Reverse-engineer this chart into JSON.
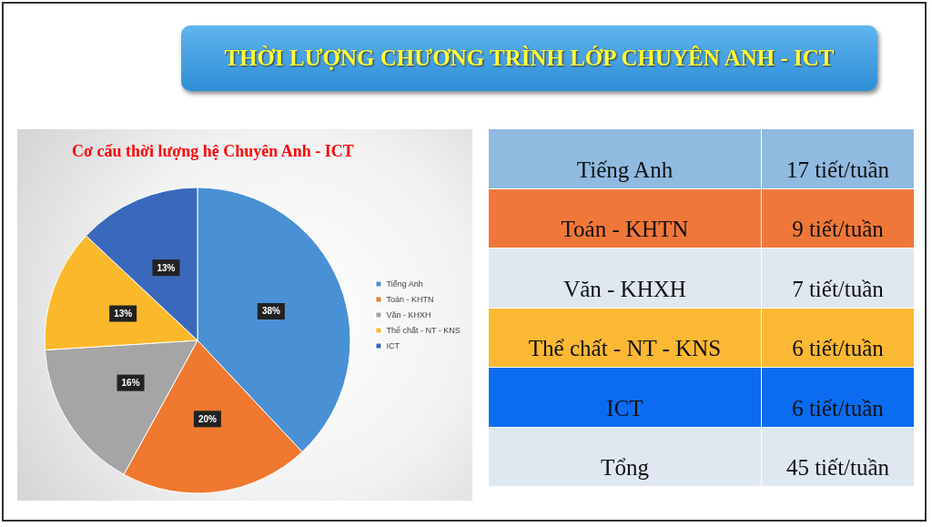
{
  "chart_data": [
    {
      "type": "pie",
      "title": "THỜI LƯỢNG CHƯƠNG TRÌNH LỚP CHUYÊN ANH - ICT",
      "subtitle": "Cơ cấu thời lượng hệ Chuyên Anh - ICT",
      "categories": [
        "Tiếng Anh",
        "Toán - KHTN",
        "Văn - KHXH",
        "Thể chất - NT - KNS",
        "ICT"
      ],
      "values": [
        38,
        20,
        16,
        13,
        13
      ],
      "value_labels": [
        "38%",
        "20%",
        "16%",
        "13%",
        "13%"
      ],
      "colors": [
        "#4a90d4",
        "#f0782f",
        "#a5a5a5",
        "#fcb82b",
        "#3a69bb"
      ],
      "legend": "right"
    },
    {
      "type": "other",
      "categories": [
        "Tiếng Anh",
        "Toán - KHTN",
        "Văn - KHXH",
        "Thể chất - NT - KNS",
        "ICT",
        "Tổng"
      ],
      "value_labels": [
        "17 tiết/tuần",
        "9 tiết/tuần",
        "7 tiết/tuần",
        "6 tiết/tuần",
        "6 tiết/tuần",
        "45 tiết/tuần"
      ],
      "colors": [
        "#90bae0",
        "#f0773a",
        "#dfe7f1",
        "#fbb832",
        "#0b6cf2",
        "#dfe7f1"
      ]
    }
  ]
}
